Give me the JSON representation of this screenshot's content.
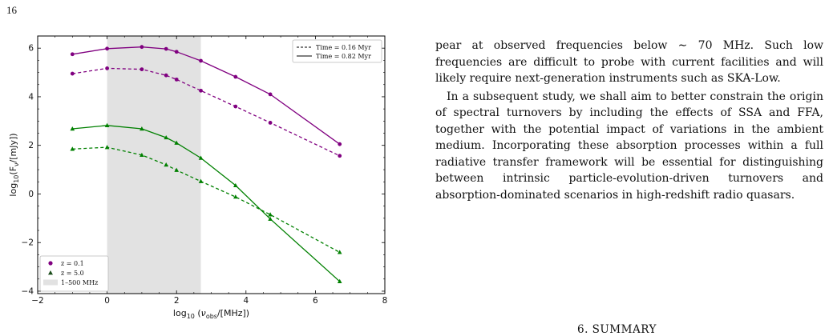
{
  "page": {
    "number": "16"
  },
  "figure": {
    "chart_data": {
      "type": "line",
      "title": "",
      "xlabel": "log$_{10}$($\\nu_{obs}$/[MHz])",
      "ylabel": "log$_{10}$(F$_\\nu$/[mJy])",
      "xlabel_parts": [
        "log",
        "10",
        " (",
        "ν",
        "obs",
        "/[MHz])"
      ],
      "ylabel_parts": [
        "log",
        "10",
        "(F",
        "ν",
        "/[mJy])"
      ],
      "xlim": [
        -2,
        8
      ],
      "ylim": [
        -4.1,
        6.5
      ],
      "xticks": [
        -2,
        0,
        2,
        4,
        6,
        8
      ],
      "yticks": [
        -4,
        -2,
        0,
        2,
        4,
        6
      ],
      "xtick_labels": [
        "−2",
        "0",
        "2",
        "4",
        "6",
        "8"
      ],
      "ytick_labels": [
        "−4",
        "−2",
        "0",
        "2",
        "4",
        "6"
      ],
      "shaded_region": {
        "x": [
          0,
          2.7
        ],
        "label": "1–500 MHz",
        "color": "#e2e2e2"
      },
      "x": [
        -1,
        0,
        1,
        1.7,
        2,
        2.7,
        3.7,
        4.7,
        6.7
      ],
      "series": [
        {
          "redshift": "z = 0.1",
          "time": "Time = 0.82 Myr",
          "style": "solid",
          "marker": "circle",
          "color": "#800080",
          "values": [
            5.75,
            5.98,
            6.05,
            5.97,
            5.85,
            5.48,
            4.82,
            4.1,
            2.05
          ]
        },
        {
          "redshift": "z = 0.1",
          "time": "Time = 0.16 Myr",
          "style": "dashed",
          "marker": "circle",
          "color": "#800080",
          "values": [
            4.95,
            5.17,
            5.13,
            4.88,
            4.71,
            4.25,
            3.6,
            2.93,
            1.57
          ]
        },
        {
          "redshift": "z = 5.0",
          "time": "Time = 0.82 Myr",
          "style": "solid",
          "marker": "triangle",
          "color": "#008000",
          "values": [
            2.68,
            2.82,
            2.68,
            2.32,
            2.1,
            1.48,
            0.35,
            -1.03,
            -3.6
          ]
        },
        {
          "redshift": "z = 5.0",
          "time": "Time = 0.16 Myr",
          "style": "dashed",
          "marker": "triangle",
          "color": "#008000",
          "values": [
            1.85,
            1.92,
            1.6,
            1.2,
            0.98,
            0.52,
            -0.12,
            -0.85,
            -2.4
          ]
        }
      ],
      "legend_time": {
        "position": "upper right",
        "entries": [
          {
            "label": "Time = 0.16 Myr",
            "style": "dashed"
          },
          {
            "label": "Time = 0.82 Myr",
            "style": "solid"
          }
        ]
      },
      "legend_redshift": {
        "position": "lower left",
        "entries": [
          {
            "label": "z = 0.1",
            "marker": "circle",
            "color": "#800080"
          },
          {
            "label": "z = 5.0",
            "marker": "triangle",
            "color": "#1a4d1a"
          },
          {
            "label": "1–500 MHz",
            "marker": "patch",
            "color": "#e2e2e2"
          }
        ]
      }
    }
  },
  "body": {
    "paragraph_1": "pear at observed frequencies below ∼ 70 MHz. Such low frequencies are difficult to probe with current facilities and will likely require next-generation instruments such as SKA-Low.",
    "paragraph_2": "In a subsequent study, we shall aim to better constrain the origin of spectral turnovers by including the effects of SSA and FFA, together with the potential impact of variations in the ambient medium. Incorporating these absorption processes within a full radiative transfer framework will be essential for distinguishing between intrinsic particle-evolution-driven turnovers and absorption-dominated scenarios in high-redshift radio quasars."
  },
  "section": {
    "heading": "6. SUMMARY"
  }
}
